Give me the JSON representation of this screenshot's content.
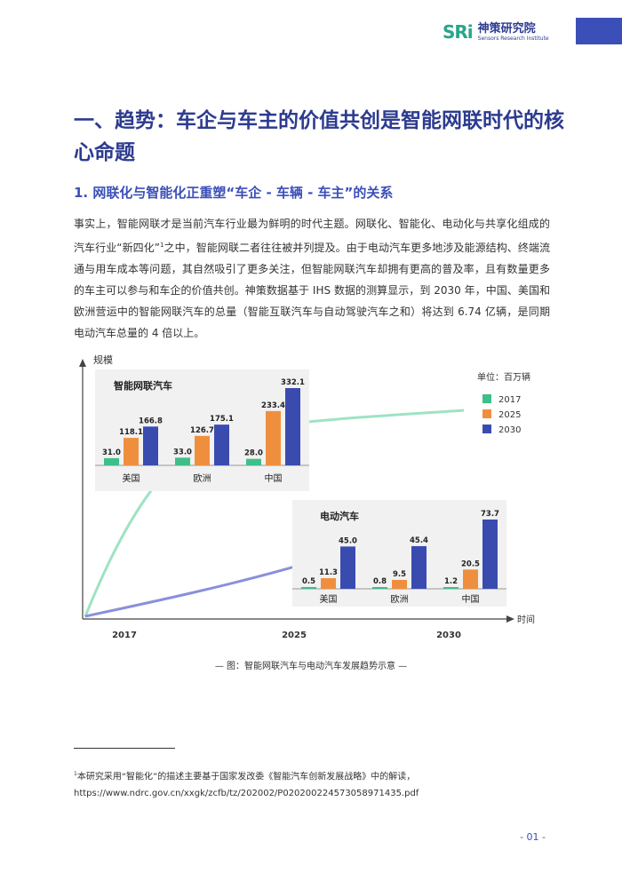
{
  "header": {
    "logo_mark": "SRi",
    "logo_cn": "神策研究院",
    "logo_en": "Sensors Research Institute"
  },
  "section_title": "一、趋势：车企与车主的价值共创是智能网联时代的核心命题",
  "subsection_title": "1. 网联化与智能化正重塑“车企 - 车辆 - 车主”的关系",
  "paragraph_before_sup": "事实上，智能网联才是当前汽车行业最为鲜明的时代主题。网联化、智能化、电动化与共享化组成的汽车行业“新四化”",
  "paragraph_sup": "1",
  "paragraph_after_sup": "之中，智能网联二者往往被并列提及。由于电动汽车更多地涉及能源结构、终端流通与用车成本等问题，其自然吸引了更多关注，但智能网联汽车却拥有更高的普及率，且有数量更多的车主可以参与和车企的价值共创。神策数据基于 IHS 数据的测算显示，到 2030 年，中国、美国和欧洲营运中的智能网联汽车的总量（智能互联汽车与自动驾驶汽车之和）将达到 6.74 亿辆，是同期电动汽车总量的 4 倍以上。",
  "chart_data": {
    "type": "bar",
    "ylabel": "规模",
    "xlabel": "时间",
    "unit_label": "单位：百万辆",
    "timeline_ticks": [
      "2017",
      "2025",
      "2030"
    ],
    "legend": [
      {
        "name": "2017",
        "color": "#3dbf8a"
      },
      {
        "name": "2025",
        "color": "#ef8f3e"
      },
      {
        "name": "2030",
        "color": "#3a4bb0"
      }
    ],
    "panels": [
      {
        "title": "智能网联汽车",
        "categories": [
          "美国",
          "欧洲",
          "中国"
        ],
        "series": [
          {
            "name": "2017",
            "values": [
              31.0,
              33.0,
              28.0
            ]
          },
          {
            "name": "2025",
            "values": [
              118.1,
              126.7,
              233.4
            ]
          },
          {
            "name": "2030",
            "values": [
              166.8,
              175.1,
              332.1
            ]
          }
        ],
        "labels": [
          [
            "31.0",
            "118.1",
            "166.8"
          ],
          [
            "33.0",
            "126.7",
            "175.1"
          ],
          [
            "28.0",
            "233.4",
            "332.1"
          ]
        ]
      },
      {
        "title": "电动汽车",
        "categories": [
          "美国",
          "欧洲",
          "中国"
        ],
        "series": [
          {
            "name": "2017",
            "values": [
              0.5,
              0.8,
              1.2
            ]
          },
          {
            "name": "2025",
            "values": [
              11.3,
              9.5,
              20.5
            ]
          },
          {
            "name": "2030",
            "values": [
              45.0,
              45.4,
              73.7
            ]
          }
        ],
        "labels": [
          [
            "0.5",
            "11.3",
            "45.0"
          ],
          [
            "0.8",
            "9.5",
            "45.4"
          ],
          [
            "1.2",
            "20.5",
            "73.7"
          ]
        ]
      }
    ]
  },
  "caption": "— 图：智能网联汽车与电动汽车发展趋势示意 —",
  "footnote_sup": "1",
  "footnote_text": "本研究采用“智能化”的描述主要基于国家发改委《智能汽车创新发展战略》中的解读，https://www.ndrc.gov.cn/xxgk/zcfb/tz/202002/P020200224573058971435.pdf",
  "page_number": "- 01 -",
  "colors": {
    "primary": "#2d3b8f",
    "accent": "#3b4fb8",
    "green": "#3dbf8a",
    "orange": "#ef8f3e",
    "navy": "#3a4bb0"
  }
}
